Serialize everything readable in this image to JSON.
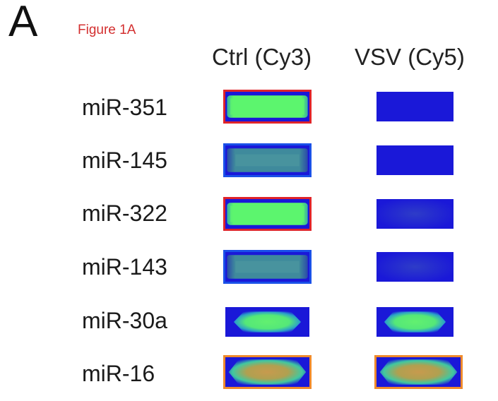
{
  "figure": {
    "panel_letter": "A",
    "caption": "Figure 1A",
    "columns": [
      {
        "key": "ctrl",
        "label": "Ctrl (Cy3)"
      },
      {
        "key": "vsv",
        "label": "VSV (Cy5)"
      }
    ],
    "rows": [
      {
        "label": "miR-351",
        "ctrl": {
          "signal": "bright-green",
          "highlight": "red"
        },
        "vsv": {
          "signal": "background",
          "highlight": "none"
        }
      },
      {
        "label": "miR-145",
        "ctrl": {
          "signal": "dim-teal",
          "highlight": "blue"
        },
        "vsv": {
          "signal": "background",
          "highlight": "none"
        }
      },
      {
        "label": "miR-322",
        "ctrl": {
          "signal": "bright-green",
          "highlight": "red"
        },
        "vsv": {
          "signal": "faint",
          "highlight": "none"
        }
      },
      {
        "label": "miR-143",
        "ctrl": {
          "signal": "dim-teal",
          "highlight": "blue"
        },
        "vsv": {
          "signal": "faint",
          "highlight": "none"
        }
      },
      {
        "label": "miR-30a",
        "ctrl": {
          "signal": "green",
          "highlight": "none"
        },
        "vsv": {
          "signal": "green",
          "highlight": "none"
        }
      },
      {
        "label": "miR-16",
        "ctrl": {
          "signal": "orange",
          "highlight": "orange"
        },
        "vsv": {
          "signal": "orange",
          "highlight": "orange"
        }
      }
    ],
    "colors": {
      "background_blue": "#1a18d8",
      "bright_green": "#5cf56e",
      "dim_teal": "#3f8a9c",
      "orange_core": "#c79a4e",
      "highlight_red": "#e0242a",
      "highlight_blue": "#1a50e8",
      "highlight_orange": "#ef8a2c",
      "caption_red": "#d32f2f"
    }
  }
}
